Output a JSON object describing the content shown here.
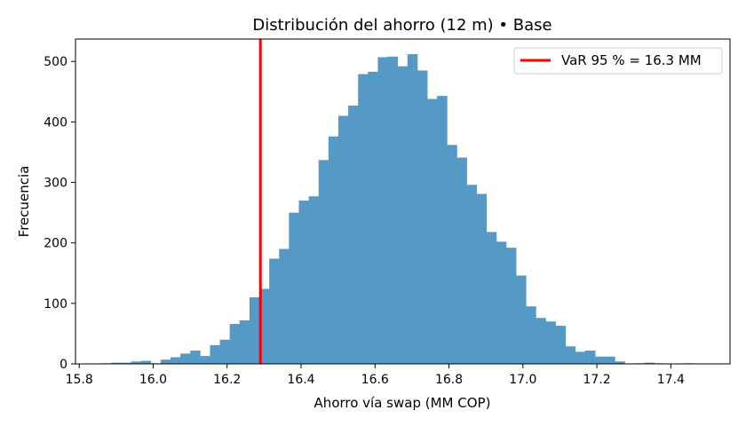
{
  "chart_data": {
    "type": "bar",
    "title": "Distribución del ahorro (12 m) • Base",
    "xlabel": "Ahorro vía swap (MM COP)",
    "ylabel": "Frecuencia",
    "xlim": [
      15.79,
      17.56
    ],
    "ylim": [
      0,
      537
    ],
    "xticks": [
      15.8,
      16.0,
      16.2,
      16.4,
      16.6,
      16.8,
      17.0,
      17.2,
      17.4
    ],
    "xtick_labels": [
      "15.8",
      "16.0",
      "16.2",
      "16.4",
      "16.6",
      "16.8",
      "17.0",
      "17.2",
      "17.4"
    ],
    "yticks": [
      0,
      100,
      200,
      300,
      400,
      500
    ],
    "ytick_labels": [
      "0",
      "100",
      "200",
      "300",
      "400",
      "500"
    ],
    "bin_start": 15.86,
    "bin_width": 0.0267,
    "values": [
      1,
      2,
      2,
      4,
      5,
      1,
      7,
      11,
      17,
      22,
      13,
      31,
      40,
      66,
      72,
      110,
      124,
      174,
      190,
      250,
      270,
      277,
      337,
      376,
      410,
      427,
      479,
      483,
      507,
      508,
      492,
      512,
      485,
      438,
      443,
      362,
      341,
      296,
      281,
      218,
      202,
      192,
      146,
      95,
      76,
      70,
      63,
      29,
      20,
      22,
      12,
      12,
      4,
      0,
      1,
      2,
      1,
      0,
      0,
      1
    ],
    "bar_color": "#5599c7",
    "var_line": {
      "x": 16.29,
      "color": "#ff0000"
    },
    "legend": {
      "label": "VaR 95 % = 16.3 MM",
      "placement": "upper-right"
    },
    "grid": false
  }
}
